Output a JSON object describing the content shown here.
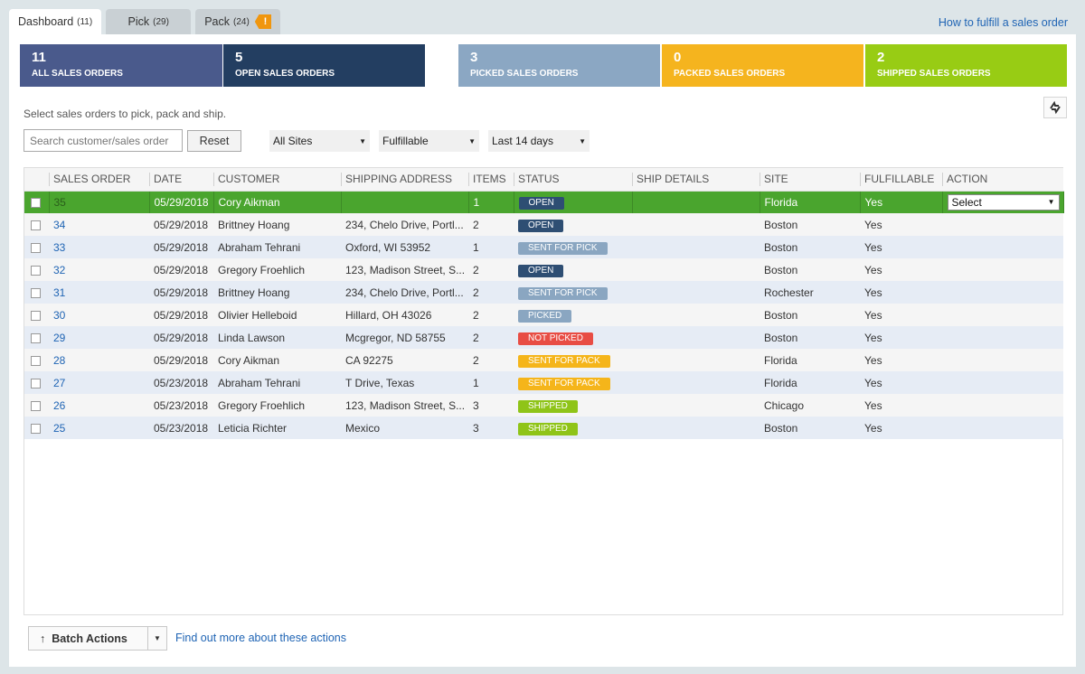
{
  "tabs": [
    {
      "label": "Dashboard",
      "count": "(11)"
    },
    {
      "label": "Pick",
      "count": "(29)"
    },
    {
      "label": "Pack",
      "count": "(24)",
      "badge": "!"
    }
  ],
  "help_link": "How to fulfill a sales order",
  "tiles": [
    {
      "num": "11",
      "label": "ALL SALES ORDERS",
      "color": "#4a5a8c"
    },
    {
      "num": "5",
      "label": "OPEN SALES ORDERS",
      "color": "#233e61"
    },
    {
      "num": "3",
      "label": "PICKED SALES ORDERS",
      "color": "#8ba7c3"
    },
    {
      "num": "0",
      "label": "PACKED SALES ORDERS",
      "color": "#f5b41e"
    },
    {
      "num": "2",
      "label": "SHIPPED SALES ORDERS",
      "color": "#98cc14"
    }
  ],
  "hint": "Select sales orders to pick, pack and ship.",
  "filters": {
    "search_placeholder": "Search customer/sales order",
    "reset": "Reset",
    "site": "All Sites",
    "fulfillable": "Fulfillable",
    "range": "Last 14 days"
  },
  "columns": [
    "SALES ORDER",
    "DATE",
    "CUSTOMER",
    "SHIPPING ADDRESS",
    "ITEMS",
    "STATUS",
    "SHIP DETAILS",
    "SITE",
    "FULFILLABLE",
    "ACTION"
  ],
  "rows": [
    {
      "so": "35",
      "date": "05/29/2018",
      "customer": "Cory Aikman",
      "address": "",
      "items": "1",
      "status": "OPEN",
      "status_key": "open",
      "ship": "",
      "site": "Florida",
      "fulfillable": "Yes",
      "action": "Select",
      "selected": true
    },
    {
      "so": "34",
      "date": "05/29/2018",
      "customer": "Brittney Hoang",
      "address": "234, Chelo Drive, Portl...",
      "items": "2",
      "status": "OPEN",
      "status_key": "open",
      "ship": "",
      "site": "Boston",
      "fulfillable": "Yes"
    },
    {
      "so": "33",
      "date": "05/29/2018",
      "customer": "Abraham Tehrani",
      "address": "Oxford, WI 53952",
      "items": "1",
      "status": "SENT FOR PICK",
      "status_key": "sentpick",
      "ship": "",
      "site": "Boston",
      "fulfillable": "Yes"
    },
    {
      "so": "32",
      "date": "05/29/2018",
      "customer": "Gregory Froehlich",
      "address": "123, Madison Street, S...",
      "items": "2",
      "status": "OPEN",
      "status_key": "open",
      "ship": "",
      "site": "Boston",
      "fulfillable": "Yes"
    },
    {
      "so": "31",
      "date": "05/29/2018",
      "customer": "Brittney Hoang",
      "address": "234, Chelo Drive, Portl...",
      "items": "2",
      "status": "SENT FOR PICK",
      "status_key": "sentpick",
      "ship": "",
      "site": "Rochester",
      "fulfillable": "Yes"
    },
    {
      "so": "30",
      "date": "05/29/2018",
      "customer": "Olivier Helleboid",
      "address": "Hillard, OH 43026",
      "items": "2",
      "status": "PICKED",
      "status_key": "picked",
      "ship": "",
      "site": "Boston",
      "fulfillable": "Yes"
    },
    {
      "so": "29",
      "date": "05/29/2018",
      "customer": "Linda Lawson",
      "address": "Mcgregor, ND 58755",
      "items": "2",
      "status": "NOT PICKED",
      "status_key": "notpicked",
      "ship": "",
      "site": "Boston",
      "fulfillable": "Yes"
    },
    {
      "so": "28",
      "date": "05/29/2018",
      "customer": "Cory Aikman",
      "address": "CA 92275",
      "items": "2",
      "status": "SENT FOR PACK",
      "status_key": "sentpack",
      "ship": "",
      "site": "Florida",
      "fulfillable": "Yes"
    },
    {
      "so": "27",
      "date": "05/23/2018",
      "customer": "Abraham Tehrani",
      "address": "T Drive, Texas",
      "items": "1",
      "status": "SENT FOR PACK",
      "status_key": "sentpack",
      "ship": "",
      "site": "Florida",
      "fulfillable": "Yes"
    },
    {
      "so": "26",
      "date": "05/23/2018",
      "customer": "Gregory Froehlich",
      "address": "123, Madison Street, S...",
      "items": "3",
      "status": "SHIPPED",
      "status_key": "shipped",
      "ship": "",
      "site": "Chicago",
      "fulfillable": "Yes"
    },
    {
      "so": "25",
      "date": "05/23/2018",
      "customer": "Leticia Richter",
      "address": "Mexico",
      "items": "3",
      "status": "SHIPPED",
      "status_key": "shipped",
      "ship": "",
      "site": "Boston",
      "fulfillable": "Yes"
    }
  ],
  "footer": {
    "batch": "Batch Actions",
    "more_link": "Find out more about these actions"
  }
}
